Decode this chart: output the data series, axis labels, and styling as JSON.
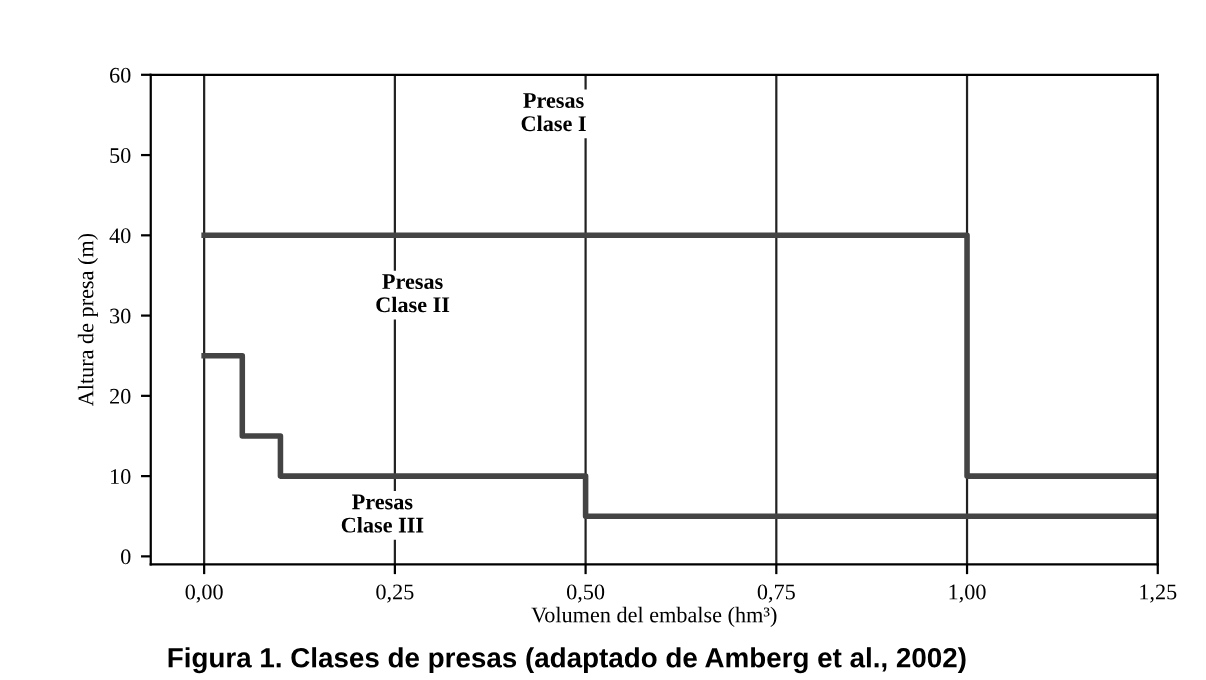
{
  "chart_data": {
    "type": "step",
    "xlabel": "Volumen del embalse (hm³)",
    "ylabel": "Altura de presa (m)",
    "series": [
      {
        "color": "#444444",
        "x": [
          0,
          1.0,
          1.25
        ],
        "values": [
          40,
          10,
          10
        ]
      },
      {
        "color": "#444444",
        "x": [
          0,
          0.05,
          0.1,
          0.5,
          1.25
        ],
        "values": [
          25,
          15,
          10,
          5,
          5
        ]
      }
    ],
    "xlim": [
      -0.07,
      1.25
    ],
    "ylim": [
      -1,
      60
    ],
    "xticks": [
      {
        "value": 0,
        "label": "0,00"
      },
      {
        "value": 0.25,
        "label": "0,25"
      },
      {
        "value": 0.5,
        "label": "0,50"
      },
      {
        "value": 0.75,
        "label": "0,75"
      },
      {
        "value": 1.0,
        "label": "1,00"
      },
      {
        "value": 1.25,
        "label": "1,25"
      }
    ],
    "yticks": [
      0,
      10,
      20,
      30,
      40,
      50,
      60
    ],
    "grid": "x",
    "legend": false,
    "marker": "none",
    "line_style": "solid",
    "annotations": [
      "Presas\nClase I",
      "Presas\nClase II",
      "Presas\nClase III",
      "Figura 1. Clases de presas (adaptado de Amberg et al., 2002)"
    ]
  }
}
